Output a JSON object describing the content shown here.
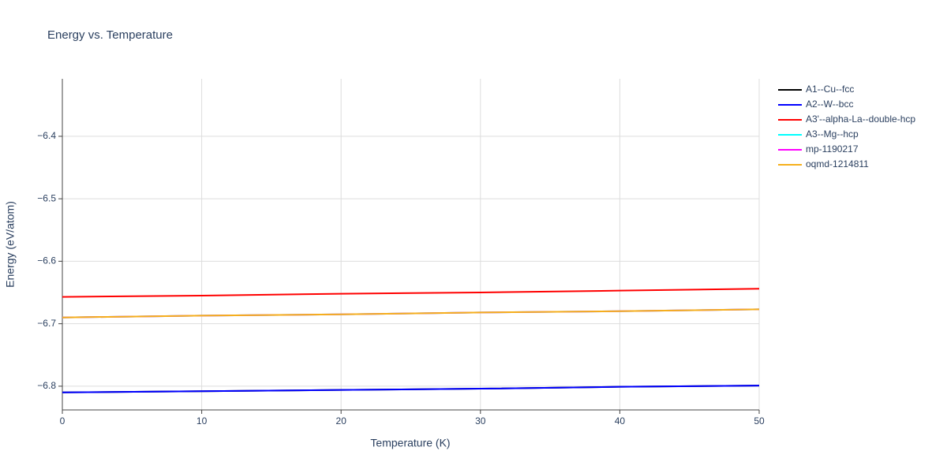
{
  "chart_data": {
    "type": "line",
    "title": "Energy vs. Temperature",
    "xlabel": "Temperature (K)",
    "ylabel": "Energy (eV/atom)",
    "x": [
      0,
      10,
      20,
      30,
      40,
      50
    ],
    "series": [
      {
        "name": "A1--Cu--fcc",
        "color": "#000000",
        "values": [
          -6.81,
          -6.808,
          -6.806,
          -6.804,
          -6.801,
          -6.799
        ]
      },
      {
        "name": "A2--W--bcc",
        "color": "#0000ff",
        "values": [
          -6.81,
          -6.808,
          -6.806,
          -6.804,
          -6.801,
          -6.799
        ]
      },
      {
        "name": "A3'--alpha-La--double-hcp",
        "color": "#ff0000",
        "values": [
          -6.657,
          -6.655,
          -6.652,
          -6.65,
          -6.647,
          -6.644
        ]
      },
      {
        "name": "A3--Mg--hcp",
        "color": "#00ffff",
        "values": [
          -6.69,
          -6.687,
          -6.685,
          -6.682,
          -6.68,
          -6.677
        ]
      },
      {
        "name": "mp-1190217",
        "color": "#ff00ff",
        "values": [
          -6.69,
          -6.687,
          -6.685,
          -6.682,
          -6.68,
          -6.677
        ]
      },
      {
        "name": "oqmd-1214811",
        "color": "#f5b01c",
        "values": [
          -6.69,
          -6.687,
          -6.685,
          -6.682,
          -6.68,
          -6.677
        ]
      }
    ],
    "xlim": [
      0,
      50
    ],
    "xticks": [
      0,
      10,
      20,
      30,
      40,
      50
    ],
    "ylim": [
      -6.838,
      -6.308
    ],
    "yticks": [
      {
        "value": -6.8,
        "label": "−6.8"
      },
      {
        "value": -6.7,
        "label": "−6.7"
      },
      {
        "value": -6.6,
        "label": "−6.6"
      },
      {
        "value": -6.5,
        "label": "−6.5"
      },
      {
        "value": -6.4,
        "label": "−6.4"
      }
    ],
    "grid": true
  }
}
